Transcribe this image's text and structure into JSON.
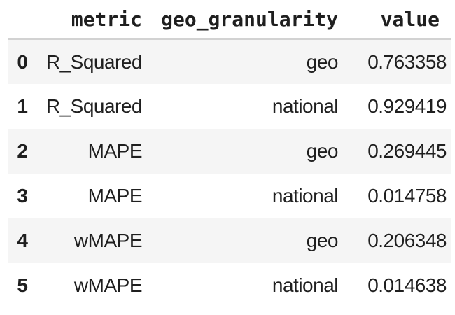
{
  "table": {
    "columns": [
      "",
      "metric",
      "geo_granularity",
      "value"
    ],
    "rows": [
      {
        "index": "0",
        "metric": "R_Squared",
        "geo_granularity": "geo",
        "value": "0.763358"
      },
      {
        "index": "1",
        "metric": "R_Squared",
        "geo_granularity": "national",
        "value": "0.929419"
      },
      {
        "index": "2",
        "metric": "MAPE",
        "geo_granularity": "geo",
        "value": "0.269445"
      },
      {
        "index": "3",
        "metric": "MAPE",
        "geo_granularity": "national",
        "value": "0.014758"
      },
      {
        "index": "4",
        "metric": "wMAPE",
        "geo_granularity": "geo",
        "value": "0.206348"
      },
      {
        "index": "5",
        "metric": "wMAPE",
        "geo_granularity": "national",
        "value": "0.014638"
      }
    ]
  },
  "colors": {
    "stripe_row_background": "#f5f5f5",
    "header_border": "#d2d2d2",
    "text": "#1f1f1f",
    "page_background": "#ffffff"
  }
}
